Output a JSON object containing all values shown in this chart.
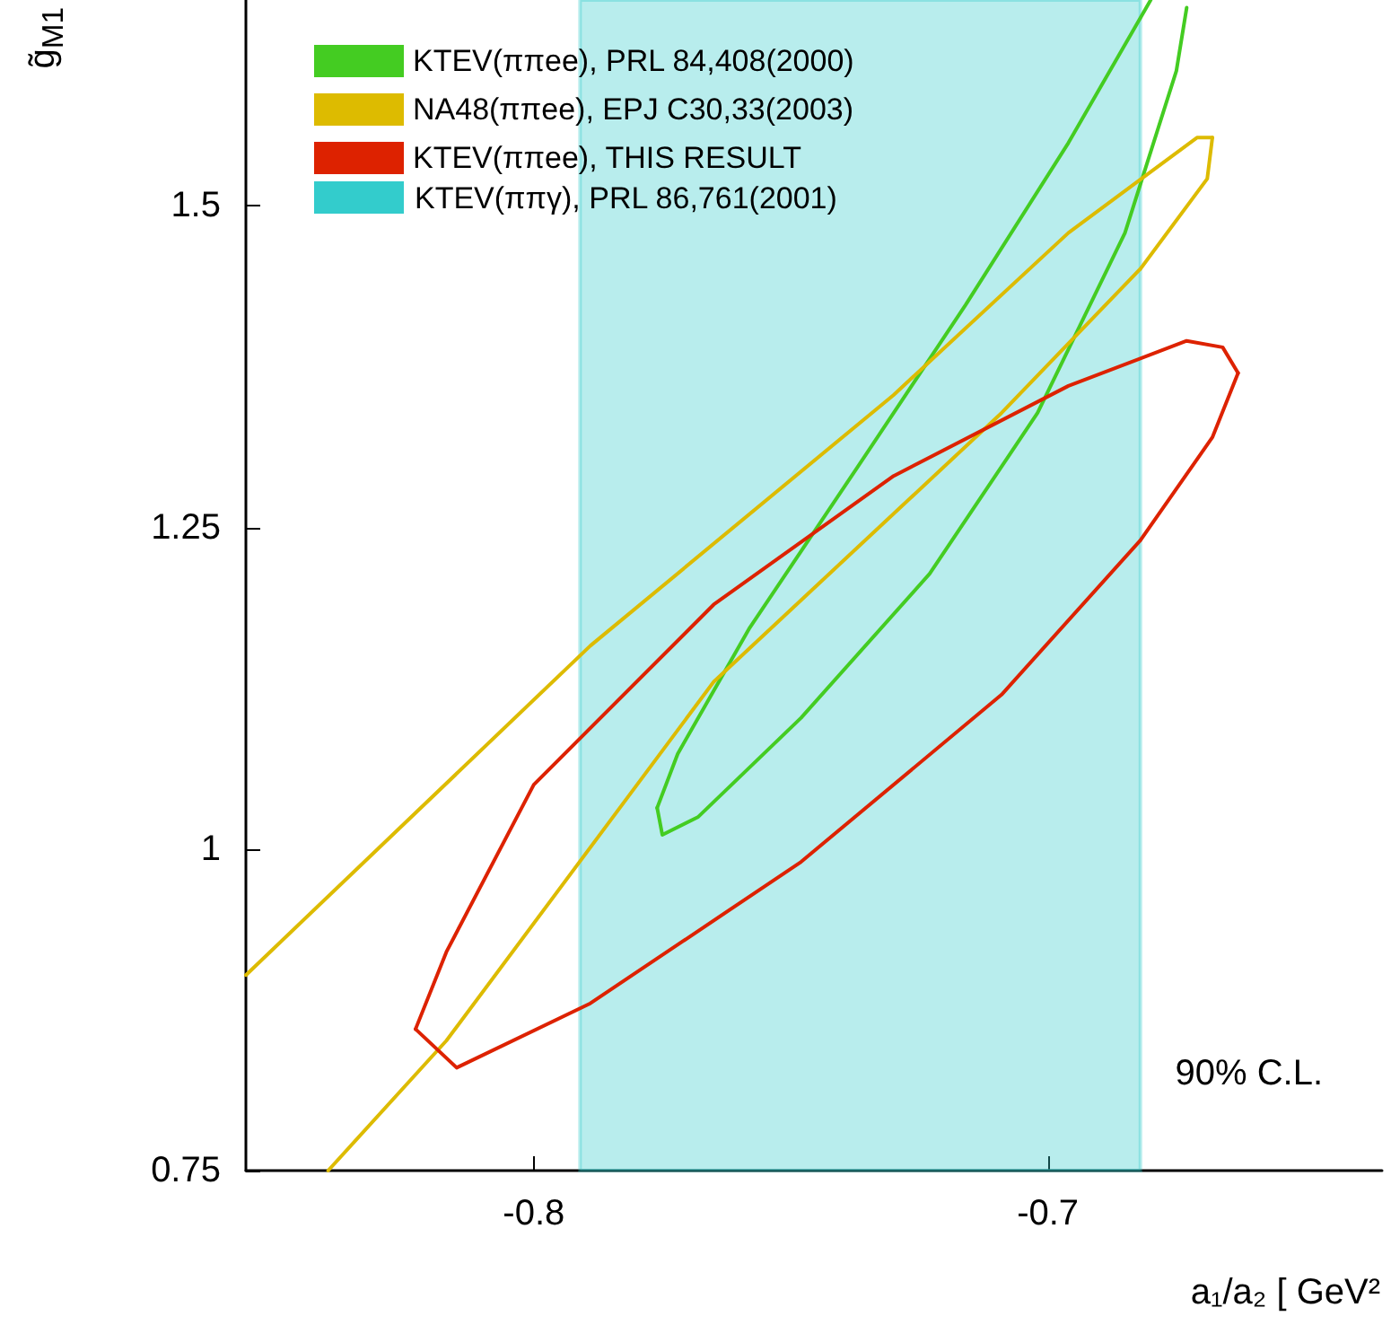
{
  "chart_data": {
    "type": "line",
    "xlabel": "a₁/a₂ [ GeV²",
    "ylabel": "g̃$_{M1}$",
    "xlim": [
      -0.856,
      -0.635
    ],
    "xticks": [
      -0.8,
      -0.7
    ],
    "ylim": [
      0.75,
      1.66
    ],
    "yticks": [
      0.75,
      1,
      1.25,
      1.5
    ],
    "grid": false,
    "legend": "top left",
    "marker": "none",
    "line_style": "solid",
    "series": [
      {
        "name": "KTEV(ππee), PRL 84,408(2000)",
        "color": "#44cc22",
        "x": [
          -0.776,
          -0.772,
          -0.758,
          -0.737,
          -0.716,
          -0.696,
          -0.68
        ],
        "values": [
          1.032,
          1.074,
          1.172,
          1.297,
          1.423,
          1.549,
          1.66
        ]
      },
      {
        "color": "#44cc22",
        "x": [
          -0.776,
          -0.775,
          -0.768,
          -0.748,
          -0.723,
          -0.702,
          -0.685,
          -0.675,
          -0.673
        ],
        "values": [
          1.032,
          1.011,
          1.025,
          1.102,
          1.214,
          1.339,
          1.479,
          1.605,
          1.654
        ]
      },
      {
        "name": "NA48(ππee), EPJ C30,33(2003)",
        "color": "#ddbb00",
        "x": [
          -0.856,
          -0.789,
          -0.73,
          -0.696,
          -0.671,
          -0.668
        ],
        "values": [
          0.902,
          1.158,
          1.353,
          1.479,
          1.553,
          1.553
        ]
      },
      {
        "color": "#ddbb00",
        "x": [
          -0.84,
          -0.817,
          -0.765,
          -0.709,
          -0.682,
          -0.669,
          -0.668
        ],
        "values": [
          0.75,
          0.851,
          1.13,
          1.339,
          1.451,
          1.521,
          1.553
        ]
      },
      {
        "name": "KTEV(ππee), THIS RESULT",
        "color": "#dd2200",
        "x": [
          -0.823,
          -0.815,
          -0.789,
          -0.748,
          -0.709,
          -0.682,
          -0.668,
          -0.663
        ],
        "values": [
          0.86,
          0.83,
          0.88,
          0.99,
          1.12,
          1.24,
          1.32,
          1.37
        ]
      },
      {
        "color": "#dd2200",
        "x": [
          -0.823,
          -0.817,
          -0.8,
          -0.765,
          -0.73,
          -0.696,
          -0.673,
          -0.666,
          -0.663
        ],
        "values": [
          0.86,
          0.92,
          1.05,
          1.19,
          1.29,
          1.36,
          1.395,
          1.39,
          1.37
        ]
      }
    ],
    "bands": [
      {
        "axis": "x",
        "from": -0.791,
        "to": -0.682,
        "label": "KTEV(ππγ), PRL 86,761(2001)",
        "color": "#33cccc"
      }
    ],
    "annotations": [
      "90% C.L."
    ]
  }
}
